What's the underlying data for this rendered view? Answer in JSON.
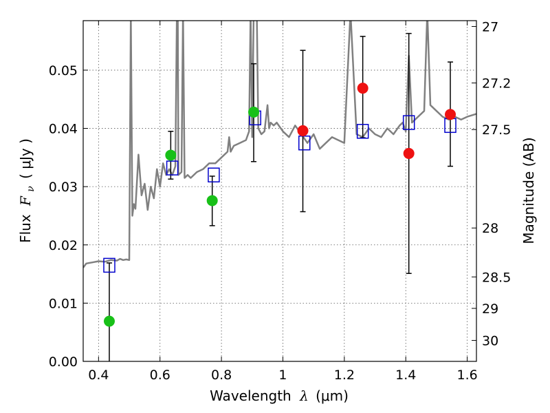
{
  "chart_data": {
    "type": "scatter",
    "xlabel_prefix": "Wavelength",
    "xlabel_symbol": "λ",
    "xlabel_unit": "(μm)",
    "ylabel_prefix": "Flux",
    "ylabel_symbol": "F",
    "ylabel_subscript": "ν",
    "ylabel_unit": "( μJy )",
    "y2label": "Magnitude (AB)",
    "xlim": [
      0.35,
      1.63
    ],
    "ylim": [
      0.0,
      0.0585
    ],
    "grid": true,
    "x_ticks": [
      0.4,
      0.6,
      0.8,
      1.0,
      1.2,
      1.4,
      1.6
    ],
    "x_tick_labels": [
      "0.4",
      "0.6",
      "0.8",
      "1",
      "1.2",
      "1.4",
      "1.6"
    ],
    "y_ticks": [
      0.0,
      0.01,
      0.02,
      0.03,
      0.04,
      0.05
    ],
    "y_tick_labels": [
      "0.00",
      "0.01",
      "0.02",
      "0.03",
      "0.04",
      "0.05"
    ],
    "y2_tick_labels": [
      "27",
      "27.2",
      "27.5",
      "28",
      "28.5",
      "29",
      "30"
    ],
    "y2_ticks_flux": [
      0.0575,
      0.0478,
      0.0398,
      0.0229,
      0.0145,
      0.0091,
      0.0036
    ],
    "colors": {
      "spectrum": "#808080",
      "model": "#0000cc",
      "detection": "#18c018",
      "upper": "#ee1111",
      "error": "#000000",
      "grid": "#555555"
    },
    "series": [
      {
        "marker": "line",
        "x": [
          0.35,
          0.36,
          0.38,
          0.4,
          0.42,
          0.44,
          0.46,
          0.47,
          0.48,
          0.49,
          0.5,
          0.505,
          0.51,
          0.515,
          0.52,
          0.53,
          0.54,
          0.545,
          0.55,
          0.56,
          0.57,
          0.58,
          0.59,
          0.6,
          0.61,
          0.62,
          0.63,
          0.64,
          0.65,
          0.655,
          0.658,
          0.66,
          0.67,
          0.675,
          0.68,
          0.69,
          0.7,
          0.72,
          0.74,
          0.76,
          0.78,
          0.8,
          0.82,
          0.825,
          0.83,
          0.84,
          0.86,
          0.88,
          0.89,
          0.895,
          0.9,
          0.905,
          0.91,
          0.915,
          0.92,
          0.93,
          0.94,
          0.95,
          0.955,
          0.96,
          0.97,
          0.98,
          1.0,
          1.02,
          1.04,
          1.06,
          1.08,
          1.1,
          1.12,
          1.14,
          1.16,
          1.18,
          1.2,
          1.22,
          1.24,
          1.26,
          1.28,
          1.3,
          1.32,
          1.34,
          1.36,
          1.38,
          1.39,
          1.4,
          1.41,
          1.42,
          1.44,
          1.46,
          1.47,
          1.48,
          1.5,
          1.52,
          1.54,
          1.56,
          1.58,
          1.6,
          1.63
        ],
        "y": [
          0.0161,
          0.0168,
          0.017,
          0.0172,
          0.0171,
          0.0174,
          0.0173,
          0.0176,
          0.0174,
          0.0175,
          0.0174,
          0.06,
          0.025,
          0.027,
          0.0262,
          0.0355,
          0.0285,
          0.0295,
          0.0305,
          0.026,
          0.03,
          0.028,
          0.033,
          0.03,
          0.034,
          0.032,
          0.033,
          0.032,
          0.0335,
          0.06,
          0.06,
          0.032,
          0.0325,
          0.06,
          0.0315,
          0.032,
          0.0315,
          0.0325,
          0.033,
          0.034,
          0.034,
          0.035,
          0.036,
          0.0385,
          0.036,
          0.037,
          0.0375,
          0.038,
          0.0395,
          0.06,
          0.0385,
          0.06,
          0.06,
          0.06,
          0.04,
          0.039,
          0.0395,
          0.044,
          0.04,
          0.041,
          0.0405,
          0.041,
          0.0395,
          0.0385,
          0.0405,
          0.039,
          0.0375,
          0.039,
          0.0365,
          0.0375,
          0.0385,
          0.038,
          0.0375,
          0.06,
          0.039,
          0.0385,
          0.04,
          0.039,
          0.0385,
          0.04,
          0.039,
          0.0405,
          0.041,
          0.0395,
          0.0525,
          0.041,
          0.042,
          0.043,
          0.06,
          0.044,
          0.043,
          0.042,
          0.0415,
          0.042,
          0.0415,
          0.042,
          0.0425
        ]
      },
      {
        "marker": "open-square",
        "x": [
          0.435,
          0.64,
          0.775,
          0.91,
          1.07,
          1.26,
          1.41,
          1.545
        ],
        "y": [
          0.0165,
          0.0332,
          0.032,
          0.0418,
          0.0375,
          0.0395,
          0.041,
          0.0405
        ]
      },
      {
        "marker": "filled-circle",
        "x": [
          0.435,
          0.635,
          0.77,
          0.905
        ],
        "y": [
          0.0069,
          0.0354,
          0.0276,
          0.0428
        ],
        "yerr_low": [
          0.0069,
          0.0041,
          0.0043,
          0.0085
        ],
        "yerr_high": [
          0.01,
          0.0041,
          0.0042,
          0.0083
        ]
      },
      {
        "marker": "filled-circle",
        "x": [
          1.065,
          1.26,
          1.41,
          1.545
        ],
        "y": [
          0.0396,
          0.0469,
          0.0357,
          0.0424
        ],
        "yerr_low": [
          0.0139,
          0.0085,
          0.0206,
          0.0089
        ],
        "yerr_high": [
          0.0138,
          0.0089,
          0.0206,
          0.009
        ]
      }
    ]
  }
}
